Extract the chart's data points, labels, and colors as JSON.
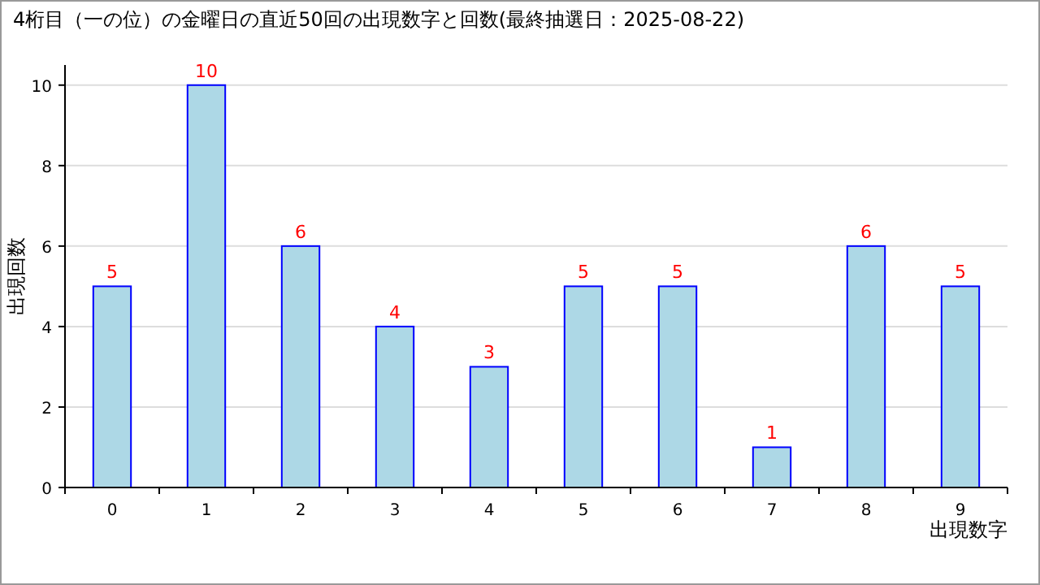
{
  "chart_data": {
    "type": "bar",
    "title": "4桁目（一の位）の金曜日の直近50回の出現数字と回数(最終抽選日：2025-08-22)",
    "xlabel": "出現数字",
    "ylabel": "出現回数",
    "categories": [
      "0",
      "1",
      "2",
      "3",
      "4",
      "5",
      "6",
      "7",
      "8",
      "9"
    ],
    "values": [
      5,
      10,
      6,
      4,
      3,
      5,
      5,
      1,
      6,
      5
    ],
    "color": "#add8e6",
    "ylim": [
      0,
      10.5
    ],
    "yticks": [
      0,
      2,
      4,
      6,
      8,
      10
    ],
    "grid": "y",
    "data_labels": true
  }
}
